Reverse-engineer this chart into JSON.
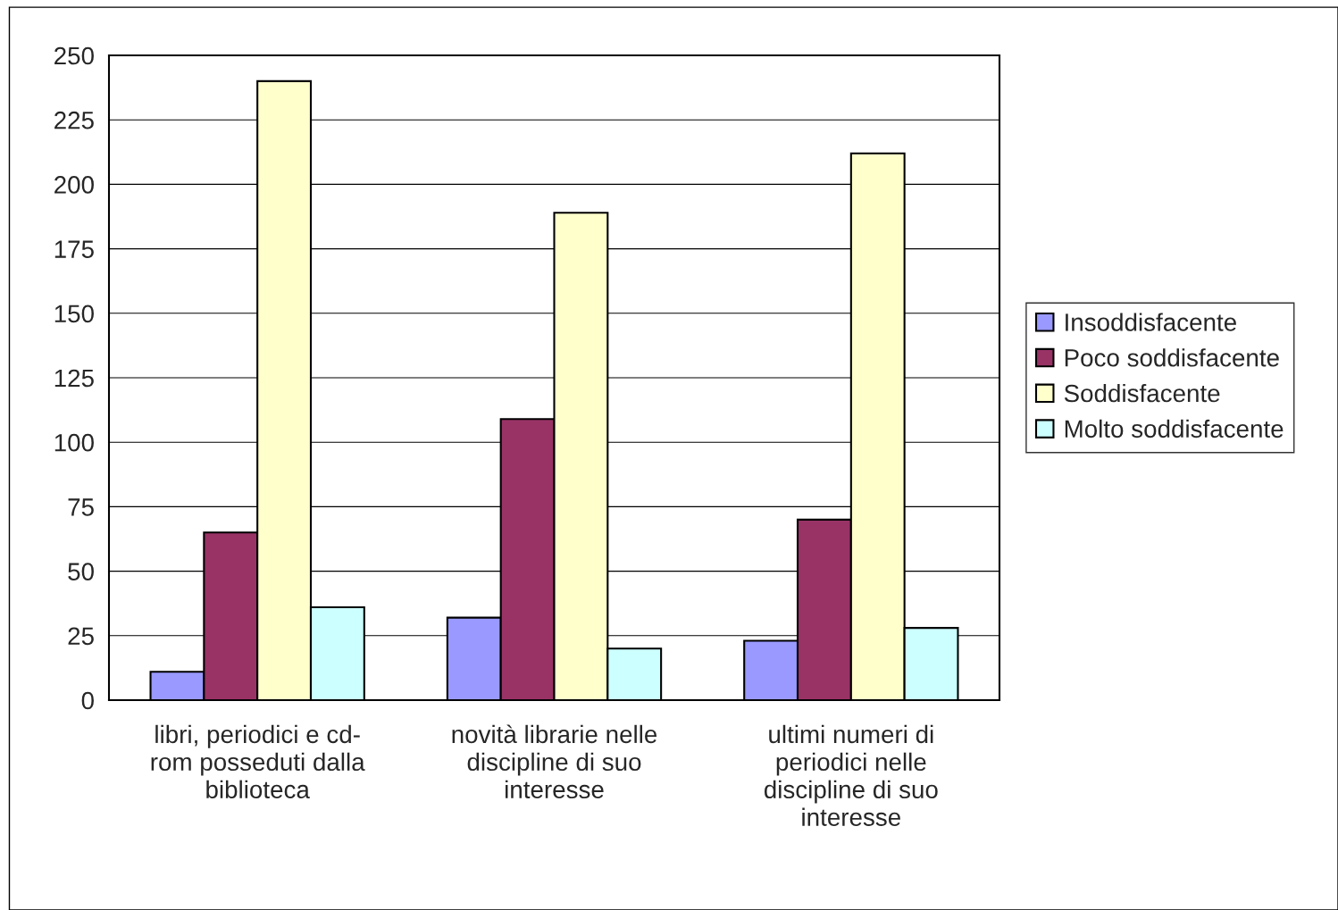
{
  "chart_data": {
    "type": "bar",
    "categories": [
      "libri, periodici e cd-\nrom posseduti dalla\nbiblioteca",
      "novità librarie nelle\ndiscipline di suo\ninteresse",
      "ultimi numeri di\nperiodici nelle\ndiscipline di suo\ninteresse"
    ],
    "series": [
      {
        "name": "Insoddisfacente",
        "color": "#9999ff",
        "values": [
          11,
          32,
          23
        ]
      },
      {
        "name": "Poco soddisfacente",
        "color": "#993366",
        "values": [
          65,
          109,
          70
        ]
      },
      {
        "name": "Soddisfacente",
        "color": "#ffffcc",
        "values": [
          240,
          189,
          212
        ]
      },
      {
        "name": "Molto soddisfacente",
        "color": "#ccffff",
        "values": [
          36,
          20,
          28
        ]
      }
    ],
    "ylim": [
      0,
      250
    ],
    "yticks": [
      0,
      25,
      50,
      75,
      100,
      125,
      150,
      175,
      200,
      225,
      250
    ],
    "grid": "y",
    "legend": "right"
  }
}
